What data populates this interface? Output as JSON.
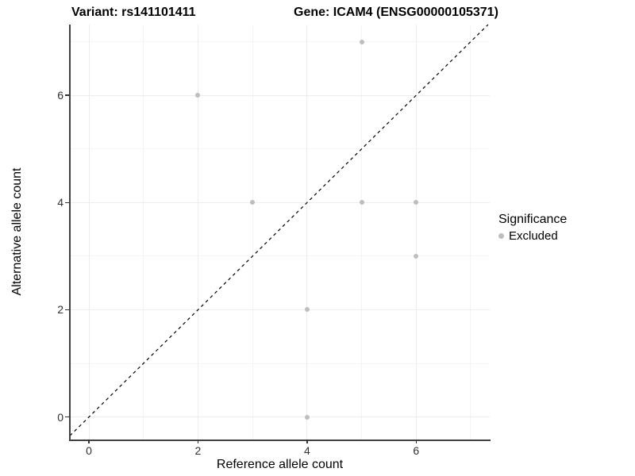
{
  "titles": {
    "variant": "Variant: rs141101411",
    "gene": "Gene: ICAM4 (ENSG00000105371)"
  },
  "axes": {
    "x_label": "Reference allele count",
    "y_label": "Alternative allele count"
  },
  "legend": {
    "title": "Significance",
    "items": [
      {
        "label": "Excluded",
        "color": "#bebebe"
      }
    ]
  },
  "chart_data": {
    "type": "scatter",
    "title": "Variant: rs141101411 — Gene: ICAM4 (ENSG00000105371)",
    "xlabel": "Reference allele count",
    "ylabel": "Alternative allele count",
    "xlim": [
      -0.35,
      7.35
    ],
    "ylim": [
      -0.42,
      7.32
    ],
    "x_major_ticks": [
      0,
      2,
      4,
      6
    ],
    "y_major_ticks": [
      0,
      2,
      4,
      6
    ],
    "x_minor_gridlines": [
      1,
      3,
      5,
      7
    ],
    "y_minor_gridlines": [
      1,
      3,
      5,
      7
    ],
    "grid": true,
    "legend_position": "right",
    "series": [
      {
        "name": "Excluded",
        "color": "#bebebe",
        "points": [
          [
            2,
            6
          ],
          [
            5,
            7
          ],
          [
            3,
            4
          ],
          [
            5,
            4
          ],
          [
            6,
            4
          ],
          [
            6,
            3
          ],
          [
            4,
            2
          ],
          [
            4,
            0
          ]
        ]
      }
    ],
    "identity_line": {
      "equation": "y = x",
      "style": "dashed",
      "color": "#000000"
    }
  },
  "colors": {
    "point": "#bebebe",
    "grid_major": "#ededed",
    "grid_minor": "#f4f4f4",
    "axis_line": "#404040",
    "dashed_line": "#000000"
  }
}
